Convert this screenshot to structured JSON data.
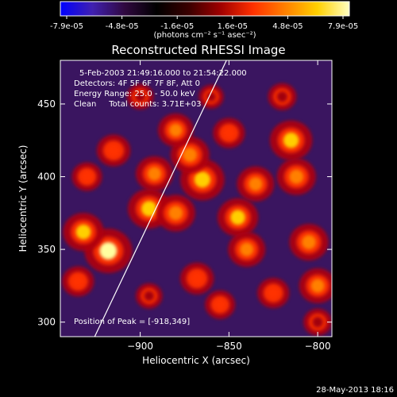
{
  "colorbar": {
    "tick_labels": [
      "-7.9e-05",
      "-4.8e-05",
      "-1.6e-05",
      "1.6e-05",
      "4.8e-05",
      "7.9e-05"
    ],
    "units": "(photons cm⁻² s⁻¹ asec⁻²)",
    "range": [
      -7.9e-05,
      7.9e-05
    ],
    "stops": [
      "#0000ff",
      "#4020b0",
      "#300840",
      "#000000",
      "#3a0000",
      "#a00000",
      "#ff3000",
      "#ff8000",
      "#ffd000",
      "#ffffc0"
    ]
  },
  "chart_data": {
    "type": "heatmap",
    "title": "Reconstructed RHESSI Image",
    "xlabel": "Heliocentric X (arcsec)",
    "ylabel": "Heliocentric Y (arcsec)",
    "xlim": [
      -945,
      -792
    ],
    "ylim": [
      290,
      480
    ],
    "x_ticks": [
      -900,
      -850,
      -800
    ],
    "y_ticks": [
      300,
      350,
      400,
      450
    ],
    "annotations": [
      "5-Feb-2003 21:49:16.000 to 21:54:22.000",
      "Detectors: 4F 5F 6F 7F 8F, Att 0",
      "Energy Range: 25.0 - 50.0 keV",
      "Clean     Total counts: 3.71E+03"
    ],
    "peak_label": "Position of Peak = [-918,349]",
    "peak_position": [
      -918,
      349
    ],
    "limb_line": [
      [
        -928,
        284
      ],
      [
        -851,
        481
      ]
    ],
    "hotspots": [
      {
        "x": -918,
        "y": 349,
        "value": 1.0
      },
      {
        "x": -932,
        "y": 362,
        "value": 0.8
      },
      {
        "x": -895,
        "y": 378,
        "value": 0.85
      },
      {
        "x": -880,
        "y": 375,
        "value": 0.75
      },
      {
        "x": -865,
        "y": 398,
        "value": 0.9
      },
      {
        "x": -872,
        "y": 415,
        "value": 0.75
      },
      {
        "x": -880,
        "y": 432,
        "value": 0.65
      },
      {
        "x": -915,
        "y": 418,
        "value": 0.6
      },
      {
        "x": -892,
        "y": 402,
        "value": 0.7
      },
      {
        "x": -850,
        "y": 430,
        "value": 0.55
      },
      {
        "x": -845,
        "y": 372,
        "value": 0.8
      },
      {
        "x": -840,
        "y": 350,
        "value": 0.7
      },
      {
        "x": -835,
        "y": 395,
        "value": 0.7
      },
      {
        "x": -815,
        "y": 425,
        "value": 0.85
      },
      {
        "x": -812,
        "y": 400,
        "value": 0.75
      },
      {
        "x": -805,
        "y": 355,
        "value": 0.75
      },
      {
        "x": -800,
        "y": 325,
        "value": 0.7
      },
      {
        "x": -825,
        "y": 320,
        "value": 0.55
      },
      {
        "x": -868,
        "y": 330,
        "value": 0.6
      },
      {
        "x": -855,
        "y": 312,
        "value": 0.5
      },
      {
        "x": -895,
        "y": 318,
        "value": 0.4
      },
      {
        "x": -935,
        "y": 328,
        "value": 0.55
      },
      {
        "x": -930,
        "y": 400,
        "value": 0.5
      },
      {
        "x": -900,
        "y": 455,
        "value": 0.4
      },
      {
        "x": -820,
        "y": 455,
        "value": 0.45
      },
      {
        "x": -800,
        "y": 300,
        "value": 0.45
      },
      {
        "x": -860,
        "y": 455,
        "value": 0.35
      }
    ]
  },
  "footer": {
    "timestamp": "28-May-2013 18:16"
  }
}
